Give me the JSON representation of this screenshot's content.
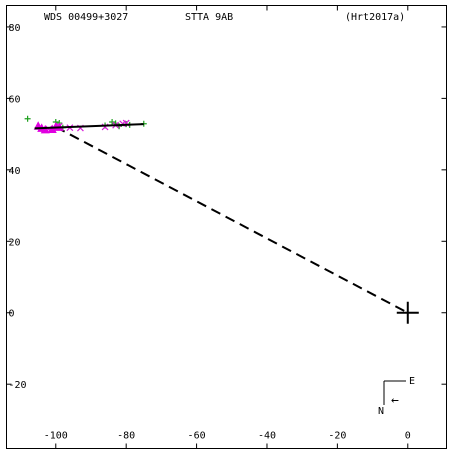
{
  "header": {
    "left": "WDS 00499+3027",
    "center": "STTA  9AB",
    "right": "(Hrt2017a)"
  },
  "compass": {
    "east_label": "E",
    "north_label": "N",
    "arrow_glyph": "←"
  },
  "colors": {
    "axis": "#000000",
    "orbit": "#000000",
    "green_plus": "#1fa01f",
    "magenta_cross": "#d81cd8",
    "magenta_triangle": "#e000e0"
  },
  "chart_data": {
    "type": "scatter",
    "xlim": [
      -114,
      11
    ],
    "ylim": [
      -38,
      86
    ],
    "x_ticks": [
      -100,
      -80,
      -60,
      -40,
      -20,
      0
    ],
    "y_ticks": [
      -20,
      0,
      20,
      40,
      60,
      80
    ],
    "x_tick_labels": [
      "-100",
      "-80",
      "-60",
      "-40",
      "-20",
      "0"
    ],
    "y_tick_labels": [
      "-20",
      "0",
      "20",
      "40",
      "60",
      "80"
    ],
    "grid": false,
    "primary": [
      0,
      0
    ],
    "predicted_position": [
      -100,
      52
    ],
    "series": [
      {
        "marker": "plus",
        "color": "green",
        "points": [
          [
            -108,
            54.3
          ],
          [
            -100,
            53.4
          ],
          [
            -99,
            53.1
          ],
          [
            -98,
            51.8
          ],
          [
            -86,
            52.4
          ],
          [
            -84,
            53.4
          ],
          [
            -83,
            53.0
          ],
          [
            -82,
            52.2
          ],
          [
            -80,
            52.8
          ],
          [
            -79,
            52.6
          ],
          [
            -75,
            52.9
          ]
        ]
      },
      {
        "marker": "cross",
        "color": "magenta",
        "points": [
          [
            -102,
            51.4
          ],
          [
            -99,
            52.2
          ],
          [
            -96,
            51.8
          ],
          [
            -93,
            51.7
          ],
          [
            -86,
            52.0
          ],
          [
            -83,
            52.5
          ],
          [
            -81,
            52.9
          ],
          [
            -80,
            53.1
          ]
        ]
      },
      {
        "marker": "triangle",
        "color": "magenta",
        "points": [
          [
            -105,
            52.2
          ],
          [
            -104,
            51.6
          ],
          [
            -103,
            51.2
          ],
          [
            -101,
            51.3
          ],
          [
            -100,
            52.0
          ],
          [
            -99,
            51.9
          ]
        ]
      },
      {
        "name": "orbit track",
        "marker": "line",
        "points": [
          [
            -106,
            51.6
          ],
          [
            -75,
            52.8
          ]
        ]
      }
    ]
  }
}
